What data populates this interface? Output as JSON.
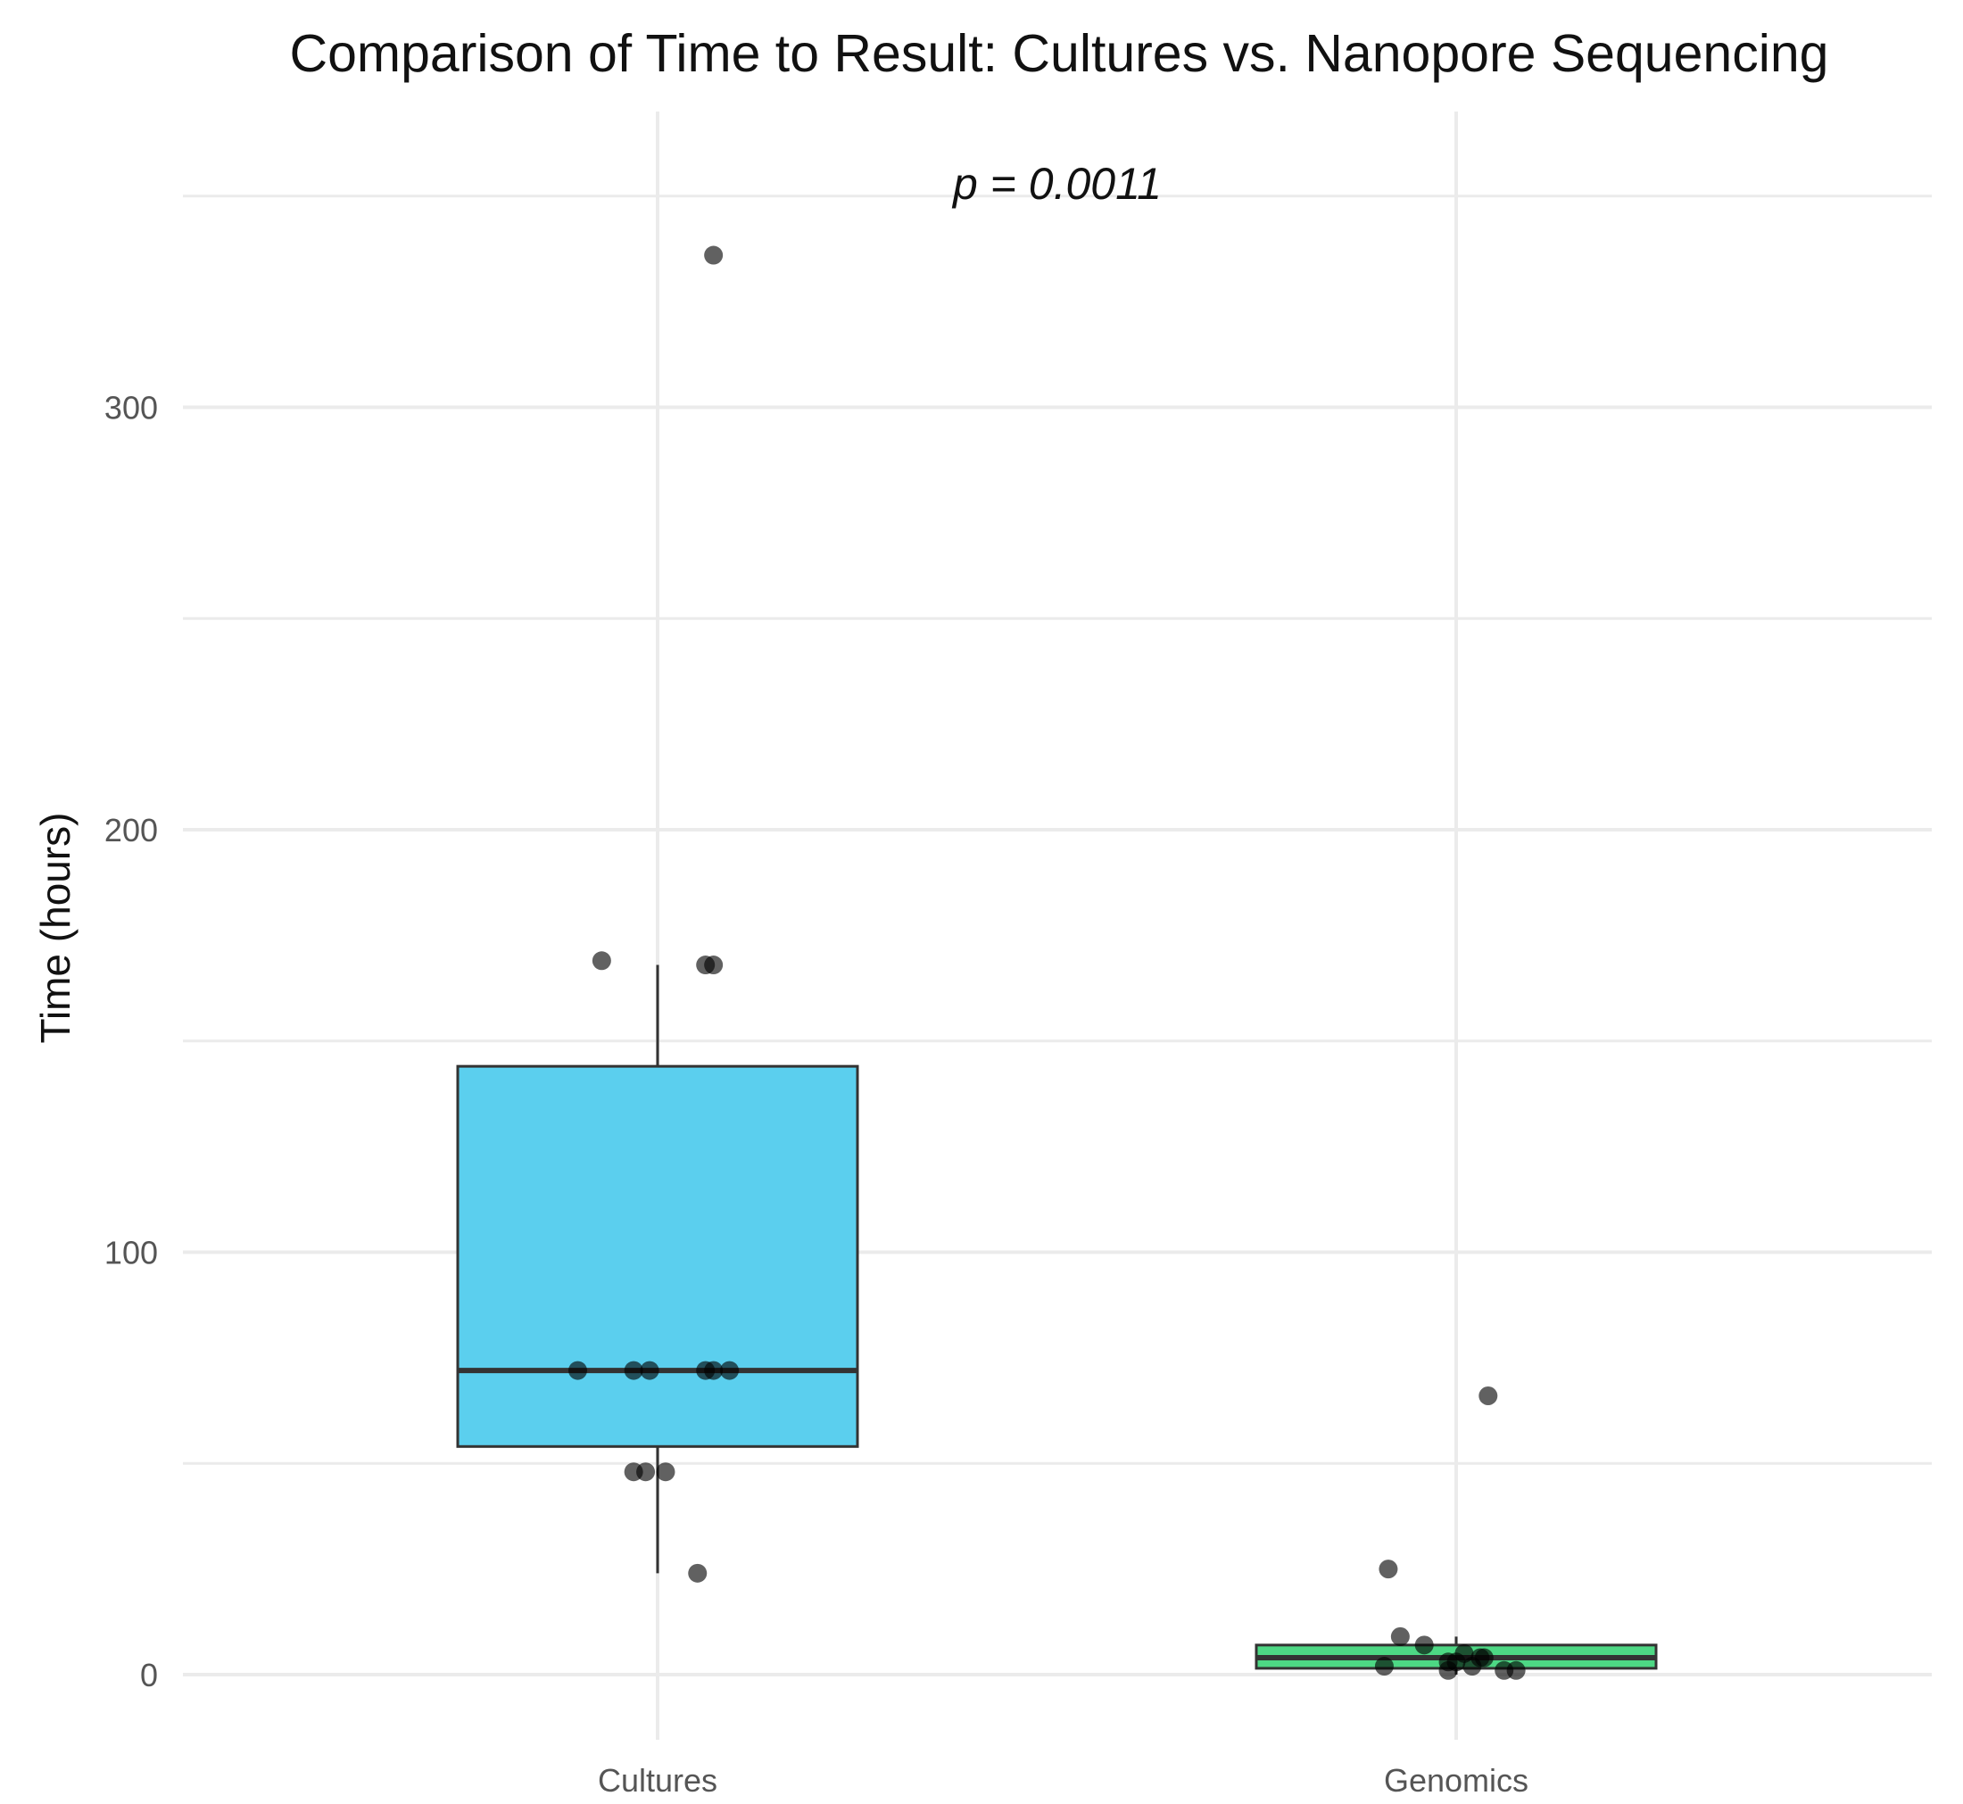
{
  "chart_data": {
    "type": "boxplot",
    "title": "Comparison of Time to Result: Cultures vs. Nanopore Sequencing",
    "xlabel": "",
    "ylabel": "Time (hours)",
    "ylim": [
      -15,
      350
    ],
    "y_ticks": [
      0,
      100,
      200,
      300
    ],
    "y_tick_labels": [
      "0",
      "100",
      "200",
      "300"
    ],
    "grid": true,
    "annotation": "p = 0.0011",
    "categories": [
      "Cultures",
      "Genomics"
    ],
    "boxes": [
      {
        "name": "Cultures",
        "color": "#5bcfee",
        "whisker_low": 24,
        "q1": 54,
        "median": 72,
        "q3": 144,
        "whisker_high": 168,
        "points": [
          {
            "y": 336,
            "jitter": 0.07
          },
          {
            "y": 169,
            "jitter": -0.07
          },
          {
            "y": 168,
            "jitter": 0.06
          },
          {
            "y": 168,
            "jitter": 0.07
          },
          {
            "y": 72,
            "jitter": -0.1
          },
          {
            "y": 72,
            "jitter": -0.03
          },
          {
            "y": 72,
            "jitter": -0.01
          },
          {
            "y": 72,
            "jitter": 0.06
          },
          {
            "y": 72,
            "jitter": 0.07
          },
          {
            "y": 72,
            "jitter": 0.09
          },
          {
            "y": 48,
            "jitter": -0.03
          },
          {
            "y": 48,
            "jitter": -0.015
          },
          {
            "y": 48,
            "jitter": 0.01
          },
          {
            "y": 24,
            "jitter": 0.05
          }
        ]
      },
      {
        "name": "Genomics",
        "color": "#4dd884",
        "whisker_low": 0,
        "q1": 1.5,
        "median": 4,
        "q3": 7,
        "whisker_high": 9,
        "points": [
          {
            "y": 66,
            "jitter": 0.04
          },
          {
            "y": 25,
            "jitter": -0.085
          },
          {
            "y": 9,
            "jitter": -0.07
          },
          {
            "y": 7,
            "jitter": -0.04
          },
          {
            "y": 5,
            "jitter": 0.01
          },
          {
            "y": 4,
            "jitter": 0.03
          },
          {
            "y": 4,
            "jitter": 0.035
          },
          {
            "y": 3,
            "jitter": -0.01
          },
          {
            "y": 3,
            "jitter": 0.0
          },
          {
            "y": 2,
            "jitter": -0.09
          },
          {
            "y": 2,
            "jitter": 0.02
          },
          {
            "y": 1,
            "jitter": -0.01
          },
          {
            "y": 1,
            "jitter": 0.06
          },
          {
            "y": 1,
            "jitter": 0.075
          }
        ]
      }
    ]
  }
}
